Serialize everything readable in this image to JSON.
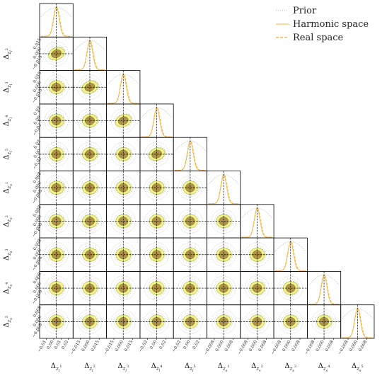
{
  "chart_data": {
    "type": "corner",
    "n_params": 10,
    "parameters": [
      "Δ_{z_l^1}",
      "Δ_{z_l^2}",
      "Δ_{z_l^3}",
      "Δ_{z_l^4}",
      "Δ_{z_l^5}",
      "Δ_{z_s^1}",
      "Δ_{z_s^2}",
      "Δ_{z_s^3}",
      "Δ_{z_s^4}",
      "Δ_{z_s^5}"
    ],
    "labels": {
      "x": [
        "Δ_{z_l^1}",
        "Δ_{z_l^2}",
        "Δ_{z_l^3}",
        "Δ_{z_l^4}",
        "Δ_{z_l^5}",
        "Δ_{z_s^1}",
        "Δ_{z_s^2}",
        "Δ_{z_s^3}",
        "Δ_{z_s^4}",
        "Δ_{z_s^5}"
      ],
      "y": [
        "Δ_{z_l^2}",
        "Δ_{z_l^3}",
        "Δ_{z_l^4}",
        "Δ_{z_l^5}",
        "Δ_{z_s^1}",
        "Δ_{z_s^2}",
        "Δ_{z_s^3}",
        "Δ_{z_s^4}",
        "Δ_{z_s^5}"
      ]
    },
    "x_ticks": [
      [
        "−0.01",
        "0.00",
        "0.01",
        "0.02"
      ],
      [
        "−0.015",
        "0.000",
        "0.015"
      ],
      [
        "−0.015",
        "0.000",
        "0.015"
      ],
      [
        "−0.02",
        "0.00",
        "0.02"
      ],
      [
        "−0.02",
        "0.00",
        "0.02"
      ],
      [
        "−0.008",
        "0.000",
        "0.008"
      ],
      [
        "−0.008",
        "0.000",
        "0.008"
      ],
      [
        "−0.008",
        "0.000",
        "0.008"
      ],
      [
        "−0.008",
        "0.000",
        "0.008"
      ],
      [
        "−0.008",
        "0.000",
        "0.008"
      ]
    ],
    "y_ticks": [
      [
        "−0.015",
        "0.000",
        "0.015"
      ],
      [
        "−0.015",
        "0.000",
        "0.015"
      ],
      [
        "−0.02",
        "0.00",
        "0.02"
      ],
      [
        "−0.02",
        "0.00",
        "0.02"
      ],
      [
        "−0.008",
        "0.000",
        "0.008"
      ],
      [
        "−0.008",
        "0.000",
        "0.008"
      ],
      [
        "−0.008",
        "0.000",
        "0.008"
      ],
      [
        "−0.008",
        "0.000",
        "0.008"
      ],
      [
        "−0.008",
        "0.000",
        "0.008"
      ]
    ],
    "truth": [
      0,
      0,
      0,
      0,
      0,
      0,
      0,
      0,
      0,
      0
    ],
    "correlation_lower_triangle": [
      [
        1.0
      ],
      [
        0.45,
        1.0
      ],
      [
        0.1,
        0.45,
        1.0
      ],
      [
        0.05,
        0.1,
        0.45,
        1.0
      ],
      [
        0.0,
        0.05,
        0.1,
        0.4,
        1.0
      ],
      [
        0.1,
        0.1,
        0.05,
        0.05,
        0.0,
        1.0
      ],
      [
        0.05,
        0.1,
        0.05,
        0.0,
        0.0,
        0.05,
        1.0
      ],
      [
        0.0,
        0.05,
        0.05,
        0.0,
        0.0,
        0.05,
        0.05,
        1.0
      ],
      [
        0.0,
        0.0,
        0.0,
        0.0,
        0.0,
        0.0,
        0.05,
        0.05,
        1.0
      ],
      [
        0.0,
        0.0,
        0.0,
        0.0,
        0.0,
        0.0,
        0.0,
        0.05,
        0.05,
        1.0
      ]
    ],
    "legend": {
      "position": "top-right",
      "entries": [
        {
          "label": "Prior",
          "style": "dotted",
          "color": "#bdbdbd"
        },
        {
          "label": "Harmonic space",
          "style": "solid",
          "color": "#f5c85a"
        },
        {
          "label": "Real space",
          "style": "dashed",
          "color": "#f2a93b"
        }
      ]
    },
    "colors": {
      "prior": "#9e9e9e",
      "harmonic_fill_outer": "#eff07a",
      "harmonic_fill_inner": "#a68a3c",
      "harmonic_line": "#f5c85a",
      "real_line": "#f2a93b",
      "truth_line": "#000000"
    },
    "grid": false
  }
}
